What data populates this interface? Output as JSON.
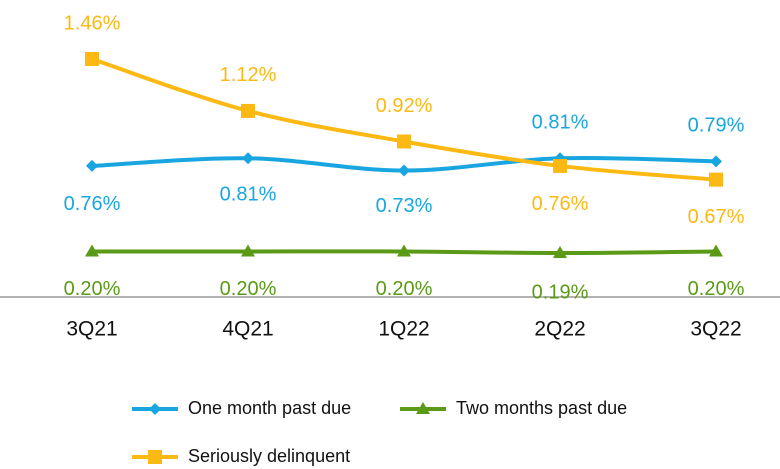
{
  "chart_data": {
    "type": "line",
    "categories": [
      "3Q21",
      "4Q21",
      "1Q22",
      "2Q22",
      "3Q22"
    ],
    "series": [
      {
        "name": "One month past due",
        "color": "#19a6e0",
        "marker": "diamond",
        "values": [
          0.76,
          0.81,
          0.73,
          0.81,
          0.79
        ],
        "value_labels": [
          "0.76%",
          "0.81%",
          "0.73%",
          "0.81%",
          "0.79%"
        ]
      },
      {
        "name": "Two months past due",
        "color": "#5a9a17",
        "marker": "triangle",
        "values": [
          0.2,
          0.2,
          0.2,
          0.19,
          0.2
        ],
        "value_labels": [
          "0.20%",
          "0.20%",
          "0.20%",
          "0.19%",
          "0.20%"
        ]
      },
      {
        "name": "Seriously delinquent",
        "color": "#fdb913",
        "marker": "square",
        "values": [
          1.46,
          1.12,
          0.92,
          0.76,
          0.67
        ],
        "value_labels": [
          "1.46%",
          "1.12%",
          "0.92%",
          "0.76%",
          "0.67%"
        ]
      }
    ]
  }
}
